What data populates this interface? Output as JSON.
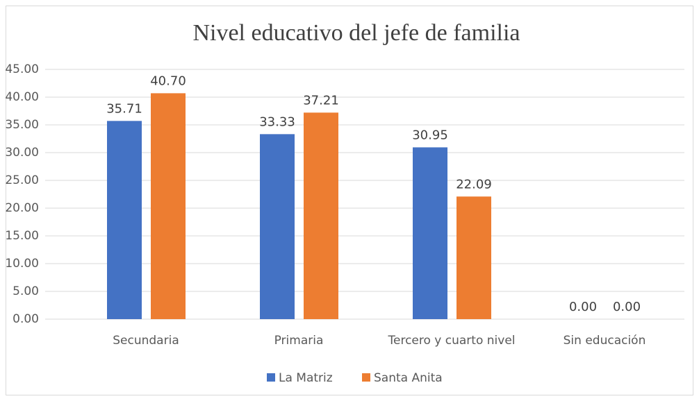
{
  "chart_data": {
    "type": "bar",
    "title": "Nivel educativo del jefe de familia",
    "categories": [
      "Secundaria",
      "Primaria",
      "Tercero y cuarto nivel",
      "Sin educación"
    ],
    "series": [
      {
        "name": "La Matriz",
        "color": "#4472c4",
        "values": [
          35.71,
          33.33,
          30.95,
          0
        ],
        "value_labels": [
          "35.71",
          "33.33",
          "30.95",
          "0.00"
        ]
      },
      {
        "name": "Santa Anita",
        "color": "#ed7d31",
        "values": [
          40.7,
          37.21,
          22.09,
          0
        ],
        "value_labels": [
          "40.70",
          "37.21",
          "22.09",
          "0.00"
        ]
      }
    ],
    "ylim": [
      0,
      45
    ],
    "yticks": [
      {
        "value": 0,
        "label": "0.00"
      },
      {
        "value": 5,
        "label": "5.00"
      },
      {
        "value": 10,
        "label": "10.00"
      },
      {
        "value": 15,
        "label": "15.00"
      },
      {
        "value": 20,
        "label": "20.00"
      },
      {
        "value": 25,
        "label": "25.00"
      },
      {
        "value": 30,
        "label": "30.00"
      },
      {
        "value": 35,
        "label": "35.00"
      },
      {
        "value": 40,
        "label": "40.00"
      },
      {
        "value": 45,
        "label": "45.00"
      }
    ],
    "grid": true,
    "legend": "bottom"
  }
}
